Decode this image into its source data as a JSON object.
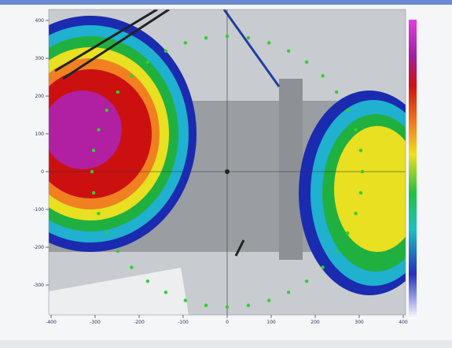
{
  "plot": {
    "y_ticks": [
      400,
      300,
      200,
      100,
      0,
      -100,
      -200,
      -300
    ],
    "x_ticks": [
      -400,
      -300,
      -200,
      -100,
      0,
      100,
      200,
      300,
      400
    ]
  }
}
